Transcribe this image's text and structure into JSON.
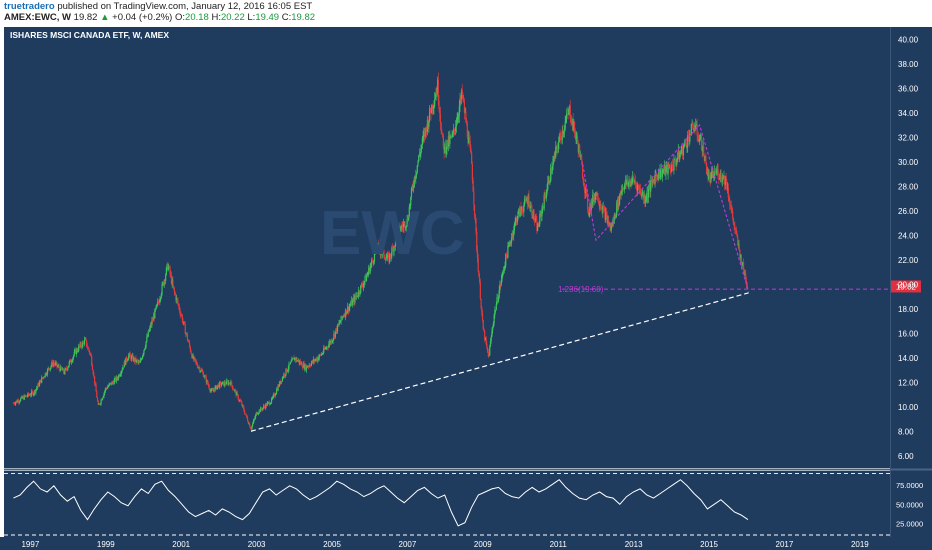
{
  "header": {
    "author": "truetradero",
    "published": "published on TradingView.com, January 12, 2016 16:05 EST",
    "symbol": "AMEX:EWC, W",
    "last": "19.82",
    "change": "+0.04 (+0.2%)",
    "o_label": "O:",
    "o_value": "20.18",
    "h_label": "H:",
    "h_value": "20.22",
    "l_label": "L:",
    "l_value": "19.49",
    "c_label": "C:",
    "c_value": "19.82"
  },
  "chart_data": {
    "type": "candlestick",
    "title": "ISHARES MSCI CANADA ETF, W, AMEX",
    "watermark": "EWC",
    "price_axis_ticks": [
      6,
      8,
      10,
      12,
      14,
      16,
      18,
      20,
      22,
      24,
      26,
      28,
      30,
      32,
      34,
      36,
      38,
      40
    ],
    "price_axis_labels": [
      "6.00",
      "8.00",
      "10.00",
      "12.00",
      "14.00",
      "16.00",
      "18.00",
      "20.00",
      "22.00",
      "24.00",
      "26.00",
      "28.00",
      "30.00",
      "32.00",
      "34.00",
      "36.00",
      "38.00",
      "40.00"
    ],
    "x_axis_labels": [
      "1997",
      "1999",
      "2001",
      "2003",
      "2005",
      "2007",
      "2009",
      "2011",
      "2013",
      "2015",
      "2017",
      "2019"
    ],
    "x_range": [
      1996.3,
      2019.8
    ],
    "y_range": [
      5,
      41
    ],
    "last_price": 19.82,
    "last_price_label": "19.82",
    "price_path": [
      [
        1996.55,
        10.3
      ],
      [
        1996.85,
        10.8
      ],
      [
        1997.1,
        11.2
      ],
      [
        1997.35,
        12.5
      ],
      [
        1997.6,
        13.6
      ],
      [
        1997.9,
        12.8
      ],
      [
        1998.2,
        14.5
      ],
      [
        1998.45,
        15.4
      ],
      [
        1998.6,
        14.2
      ],
      [
        1998.8,
        10.0
      ],
      [
        1999.0,
        11.5
      ],
      [
        1999.3,
        12.3
      ],
      [
        1999.6,
        14.2
      ],
      [
        1999.9,
        13.5
      ],
      [
        2000.15,
        16.2
      ],
      [
        2000.4,
        18.6
      ],
      [
        2000.65,
        21.6
      ],
      [
        2000.8,
        19.5
      ],
      [
        2001.0,
        17.5
      ],
      [
        2001.3,
        14.0
      ],
      [
        2001.6,
        12.6
      ],
      [
        2001.8,
        11.2
      ],
      [
        2002.0,
        11.8
      ],
      [
        2002.3,
        12.0
      ],
      [
        2002.6,
        10.2
      ],
      [
        2002.85,
        8.2
      ],
      [
        2003.0,
        9.5
      ],
      [
        2003.4,
        10.5
      ],
      [
        2003.7,
        12.5
      ],
      [
        2004.0,
        14.0
      ],
      [
        2004.3,
        13.2
      ],
      [
        2004.7,
        14.2
      ],
      [
        2005.0,
        15.5
      ],
      [
        2005.3,
        17.5
      ],
      [
        2005.6,
        18.8
      ],
      [
        2005.9,
        20.5
      ],
      [
        2006.2,
        23.0
      ],
      [
        2006.5,
        22.0
      ],
      [
        2006.8,
        24.5
      ],
      [
        2007.0,
        25.2
      ],
      [
        2007.15,
        28.2
      ],
      [
        2007.35,
        31.0
      ],
      [
        2007.6,
        34.0
      ],
      [
        2007.8,
        36.2
      ],
      [
        2007.95,
        31.0
      ],
      [
        2008.2,
        32.0
      ],
      [
        2008.45,
        35.5
      ],
      [
        2008.7,
        30.0
      ],
      [
        2008.85,
        22.5
      ],
      [
        2009.0,
        16.5
      ],
      [
        2009.15,
        14.0
      ],
      [
        2009.3,
        17.5
      ],
      [
        2009.6,
        22.0
      ],
      [
        2009.9,
        25.5
      ],
      [
        2010.2,
        27.0
      ],
      [
        2010.45,
        24.5
      ],
      [
        2010.75,
        28.5
      ],
      [
        2011.0,
        31.5
      ],
      [
        2011.3,
        34.2
      ],
      [
        2011.55,
        31.0
      ],
      [
        2011.8,
        26.0
      ],
      [
        2012.0,
        27.5
      ],
      [
        2012.4,
        24.5
      ],
      [
        2012.7,
        28.0
      ],
      [
        2013.0,
        28.5
      ],
      [
        2013.3,
        27.0
      ],
      [
        2013.6,
        29.0
      ],
      [
        2014.0,
        29.5
      ],
      [
        2014.3,
        31.0
      ],
      [
        2014.6,
        33.0
      ],
      [
        2014.8,
        31.5
      ],
      [
        2015.0,
        28.5
      ],
      [
        2015.2,
        29.2
      ],
      [
        2015.45,
        28.5
      ],
      [
        2015.65,
        25.0
      ],
      [
        2015.85,
        22.0
      ],
      [
        2016.03,
        19.82
      ]
    ],
    "trendline": {
      "from": [
        2002.85,
        8.0
      ],
      "to": [
        2016.05,
        19.3
      ],
      "style": "dashed",
      "color": "#ffffff"
    },
    "fib_line": {
      "label": "1.236(19.60)",
      "value": 19.6,
      "from_x": 2011.1,
      "style": "dashed",
      "color": "#c03ad6"
    },
    "pattern": {
      "points": [
        [
          2011.65,
          29.8
        ],
        [
          2012.0,
          23.6
        ],
        [
          2014.75,
          33.0
        ],
        [
          2016.05,
          19.4
        ]
      ],
      "color": "#c03ad6"
    },
    "oscillator": {
      "ticks": [
        25,
        50,
        75
      ],
      "tick_labels": [
        "25.0000",
        "50.0000",
        "75.0000"
      ],
      "y_range": [
        10,
        92
      ],
      "bands": [
        90,
        10
      ],
      "values": [
        58,
        62,
        72,
        80,
        70,
        66,
        74,
        62,
        54,
        60,
        42,
        30,
        44,
        56,
        66,
        60,
        52,
        48,
        60,
        70,
        64,
        76,
        80,
        68,
        60,
        50,
        40,
        34,
        38,
        42,
        36,
        44,
        40,
        34,
        30,
        38,
        52,
        66,
        70,
        62,
        68,
        74,
        70,
        62,
        56,
        60,
        66,
        72,
        80,
        76,
        70,
        66,
        60,
        64,
        70,
        74,
        66,
        58,
        52,
        60,
        68,
        72,
        64,
        58,
        62,
        40,
        22,
        26,
        46,
        62,
        66,
        70,
        72,
        64,
        60,
        58,
        66,
        72,
        66,
        70,
        76,
        82,
        72,
        64,
        58,
        56,
        62,
        66,
        60,
        58,
        50,
        60,
        66,
        70,
        62,
        58,
        64,
        70,
        76,
        82,
        74,
        64,
        56,
        44,
        50,
        56,
        48,
        40,
        36,
        30
      ]
    }
  }
}
